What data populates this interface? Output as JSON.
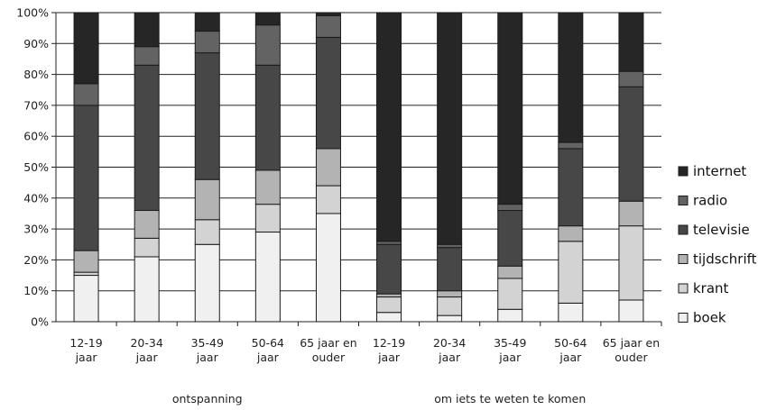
{
  "chart_data": {
    "type": "bar",
    "stacked": true,
    "percent_stacked": true,
    "categories": [
      [
        "12-19",
        "jaar"
      ],
      [
        "20-34",
        "jaar"
      ],
      [
        "35-49",
        "jaar"
      ],
      [
        "50-64",
        "jaar"
      ],
      [
        "65 jaar en",
        "ouder"
      ],
      [
        "12-19",
        "jaar"
      ],
      [
        "20-34",
        "jaar"
      ],
      [
        "35-49",
        "jaar"
      ],
      [
        "50-64",
        "jaar"
      ],
      [
        "65 jaar en",
        "ouder"
      ]
    ],
    "groups": [
      {
        "label": "ontspanning",
        "categories": [
          0,
          1,
          2,
          3,
          4
        ]
      },
      {
        "label": "om iets te weten te komen",
        "categories": [
          5,
          6,
          7,
          8,
          9
        ]
      }
    ],
    "series": [
      {
        "name": "boek",
        "color": "#f0f0f0",
        "values": [
          15,
          21,
          25,
          29,
          35,
          3,
          2,
          4,
          6,
          7
        ]
      },
      {
        "name": "krant",
        "color": "#d3d3d3",
        "values": [
          1,
          6,
          8,
          9,
          9,
          5,
          6,
          10,
          20,
          24
        ]
      },
      {
        "name": "tijdschrift",
        "color": "#b3b3b3",
        "values": [
          7,
          9,
          13,
          11,
          12,
          1,
          2,
          4,
          5,
          8
        ]
      },
      {
        "name": "televisie",
        "color": "#474747",
        "values": [
          47,
          47,
          41,
          34,
          36,
          16,
          14,
          18,
          25,
          37
        ]
      },
      {
        "name": "radio",
        "color": "#636363",
        "values": [
          7,
          6,
          7,
          13,
          7,
          1,
          1,
          2,
          2,
          5
        ]
      },
      {
        "name": "internet",
        "color": "#262626",
        "values": [
          23,
          11,
          6,
          4,
          1,
          74,
          75,
          62,
          42,
          19
        ]
      }
    ],
    "yticks": [
      "0%",
      "10%",
      "20%",
      "30%",
      "40%",
      "50%",
      "60%",
      "70%",
      "80%",
      "90%",
      "100%"
    ],
    "ylim": [
      0,
      100
    ],
    "grid": true,
    "legend_position": "right",
    "legend_order": [
      "internet",
      "radio",
      "televisie",
      "tijdschrift",
      "krant",
      "boek"
    ]
  }
}
